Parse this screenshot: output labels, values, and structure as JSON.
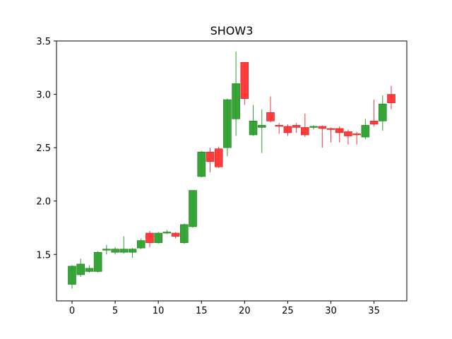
{
  "chart_data": {
    "type": "candlestick",
    "title": "SHOW3",
    "xlabel": "",
    "ylabel": "",
    "xlim": [
      -1.8,
      38.8
    ],
    "ylim": [
      1.065,
      3.5
    ],
    "xticks": [
      0,
      5,
      10,
      15,
      20,
      25,
      30,
      35
    ],
    "yticks": [
      1.5,
      2.0,
      2.5,
      3.0,
      3.5
    ],
    "ytick_labels": [
      "1.5",
      "2.0",
      "2.5",
      "3.0",
      "3.5"
    ],
    "grid": false,
    "up_color": "#2ca02c",
    "down_color": "#ff3333",
    "candles": [
      {
        "x": 0,
        "open": 1.22,
        "close": 1.39,
        "high": 1.4,
        "low": 1.18
      },
      {
        "x": 1,
        "open": 1.31,
        "close": 1.41,
        "high": 1.46,
        "low": 1.29
      },
      {
        "x": 2,
        "open": 1.34,
        "close": 1.37,
        "high": 1.4,
        "low": 1.33
      },
      {
        "x": 3,
        "open": 1.34,
        "close": 1.52,
        "high": 1.53,
        "low": 1.33
      },
      {
        "x": 4,
        "open": 1.54,
        "close": 1.55,
        "high": 1.59,
        "low": 1.5
      },
      {
        "x": 5,
        "open": 1.52,
        "close": 1.55,
        "high": 1.57,
        "low": 1.5
      },
      {
        "x": 6,
        "open": 1.52,
        "close": 1.55,
        "high": 1.67,
        "low": 1.51
      },
      {
        "x": 7,
        "open": 1.52,
        "close": 1.55,
        "high": 1.56,
        "low": 1.47
      },
      {
        "x": 8,
        "open": 1.56,
        "close": 1.63,
        "high": 1.65,
        "low": 1.55
      },
      {
        "x": 9,
        "open": 1.7,
        "close": 1.61,
        "high": 1.72,
        "low": 1.57
      },
      {
        "x": 10,
        "open": 1.61,
        "close": 1.7,
        "high": 1.71,
        "low": 1.6
      },
      {
        "x": 11,
        "open": 1.7,
        "close": 1.71,
        "high": 1.73,
        "low": 1.69
      },
      {
        "x": 12,
        "open": 1.7,
        "close": 1.67,
        "high": 1.71,
        "low": 1.65
      },
      {
        "x": 13,
        "open": 1.61,
        "close": 1.78,
        "high": 1.79,
        "low": 1.6
      },
      {
        "x": 14,
        "open": 1.76,
        "close": 2.1,
        "high": 2.1,
        "low": 1.75
      },
      {
        "x": 15,
        "open": 2.23,
        "close": 2.46,
        "high": 2.47,
        "low": 2.22
      },
      {
        "x": 16,
        "open": 2.46,
        "close": 2.37,
        "high": 2.5,
        "low": 2.27
      },
      {
        "x": 17,
        "open": 2.49,
        "close": 2.32,
        "high": 2.51,
        "low": 2.31
      },
      {
        "x": 18,
        "open": 2.5,
        "close": 2.95,
        "high": 2.96,
        "low": 2.42
      },
      {
        "x": 19,
        "open": 2.77,
        "close": 3.1,
        "high": 3.4,
        "low": 2.61
      },
      {
        "x": 20,
        "open": 3.3,
        "close": 2.96,
        "high": 3.3,
        "low": 2.9
      },
      {
        "x": 21,
        "open": 2.62,
        "close": 2.75,
        "high": 2.9,
        "low": 2.61
      },
      {
        "x": 22,
        "open": 2.69,
        "close": 2.71,
        "high": 2.86,
        "low": 2.45
      },
      {
        "x": 23,
        "open": 2.83,
        "close": 2.75,
        "high": 2.98,
        "low": 2.74
      },
      {
        "x": 24,
        "open": 2.71,
        "close": 2.7,
        "high": 2.73,
        "low": 2.63
      },
      {
        "x": 25,
        "open": 2.7,
        "close": 2.64,
        "high": 2.72,
        "low": 2.61
      },
      {
        "x": 26,
        "open": 2.71,
        "close": 2.69,
        "high": 2.73,
        "low": 2.64
      },
      {
        "x": 27,
        "open": 2.69,
        "close": 2.62,
        "high": 2.82,
        "low": 2.6
      },
      {
        "x": 28,
        "open": 2.69,
        "close": 2.7,
        "high": 2.71,
        "low": 2.67
      },
      {
        "x": 29,
        "open": 2.7,
        "close": 2.68,
        "high": 2.71,
        "low": 2.5
      },
      {
        "x": 30,
        "open": 2.68,
        "close": 2.67,
        "high": 2.69,
        "low": 2.55
      },
      {
        "x": 31,
        "open": 2.68,
        "close": 2.64,
        "high": 2.7,
        "low": 2.55
      },
      {
        "x": 32,
        "open": 2.65,
        "close": 2.61,
        "high": 2.67,
        "low": 2.53
      },
      {
        "x": 33,
        "open": 2.63,
        "close": 2.62,
        "high": 2.65,
        "low": 2.53
      },
      {
        "x": 34,
        "open": 2.6,
        "close": 2.71,
        "high": 2.77,
        "low": 2.58
      },
      {
        "x": 35,
        "open": 2.75,
        "close": 2.72,
        "high": 2.95,
        "low": 2.7
      },
      {
        "x": 36,
        "open": 2.75,
        "close": 2.91,
        "high": 2.99,
        "low": 2.66
      },
      {
        "x": 37,
        "open": 3.0,
        "close": 2.92,
        "high": 3.08,
        "low": 2.86
      }
    ]
  }
}
